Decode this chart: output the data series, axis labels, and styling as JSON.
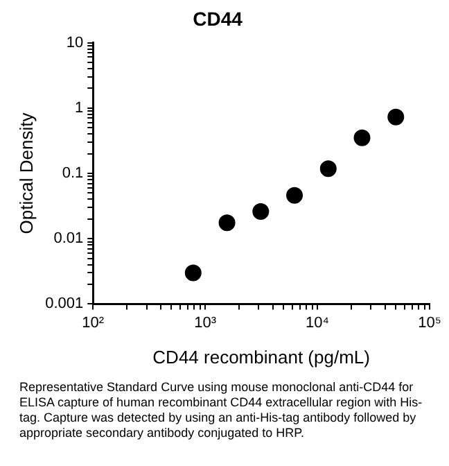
{
  "chart_data": {
    "type": "scatter",
    "title": "CD44",
    "xlabel": "CD44 recombinant (pg/mL)",
    "ylabel": "Optical Density",
    "annotations": [
      "Representative Standard Curve using mouse monoclonal anti-CD44 for ELISA capture of human recombinant CD44 extracellular region with His-tag. Capture was detected by using an anti-His-tag antibody followed by appropriate secondary antibody conjugated to HRP."
    ],
    "log": "xy",
    "marker": "circle",
    "grid": false,
    "legend": false,
    "x": [
      781,
      1563,
      3125,
      6250,
      12500,
      25000,
      50000
    ],
    "series": [
      {
        "color": "#000000",
        "values": [
          0.003,
          0.0175,
          0.026,
          0.046,
          0.118,
          0.35,
          0.73
        ]
      }
    ],
    "xlim": [
      100,
      100000
    ],
    "ylim": [
      0.001,
      10
    ],
    "xticks": [
      {
        "value": 100,
        "label": "10²"
      },
      {
        "value": 200,
        "label": null
      },
      {
        "value": 300,
        "label": null
      },
      {
        "value": 400,
        "label": null
      },
      {
        "value": 500,
        "label": null
      },
      {
        "value": 600,
        "label": null
      },
      {
        "value": 700,
        "label": null
      },
      {
        "value": 800,
        "label": null
      },
      {
        "value": 900,
        "label": null
      },
      {
        "value": 1000,
        "label": "10³"
      },
      {
        "value": 2000,
        "label": null
      },
      {
        "value": 3000,
        "label": null
      },
      {
        "value": 4000,
        "label": null
      },
      {
        "value": 5000,
        "label": null
      },
      {
        "value": 6000,
        "label": null
      },
      {
        "value": 7000,
        "label": null
      },
      {
        "value": 8000,
        "label": null
      },
      {
        "value": 9000,
        "label": null
      },
      {
        "value": 10000,
        "label": "10⁴"
      },
      {
        "value": 20000,
        "label": null
      },
      {
        "value": 30000,
        "label": null
      },
      {
        "value": 40000,
        "label": null
      },
      {
        "value": 50000,
        "label": null
      },
      {
        "value": 60000,
        "label": null
      },
      {
        "value": 70000,
        "label": null
      },
      {
        "value": 80000,
        "label": null
      },
      {
        "value": 90000,
        "label": null
      },
      {
        "value": 100000,
        "label": "10⁵"
      }
    ],
    "yticks": [
      0.001,
      {
        "value": 0.002,
        "label": null
      },
      {
        "value": 0.003,
        "label": null
      },
      {
        "value": 0.004,
        "label": null
      },
      {
        "value": 0.005,
        "label": null
      },
      {
        "value": 0.006,
        "label": null
      },
      {
        "value": 0.007,
        "label": null
      },
      {
        "value": 0.008,
        "label": null
      },
      {
        "value": 0.009,
        "label": null
      },
      0.01,
      {
        "value": 0.02,
        "label": null
      },
      {
        "value": 0.03,
        "label": null
      },
      {
        "value": 0.04,
        "label": null
      },
      {
        "value": 0.05,
        "label": null
      },
      {
        "value": 0.06,
        "label": null
      },
      {
        "value": 0.07,
        "label": null
      },
      {
        "value": 0.08,
        "label": null
      },
      {
        "value": 0.09,
        "label": null
      },
      0.1,
      {
        "value": 0.2,
        "label": null
      },
      {
        "value": 0.3,
        "label": null
      },
      {
        "value": 0.4,
        "label": null
      },
      {
        "value": 0.5,
        "label": null
      },
      {
        "value": 0.6,
        "label": null
      },
      {
        "value": 0.7,
        "label": null
      },
      {
        "value": 0.8,
        "label": null
      },
      {
        "value": 0.9,
        "label": null
      },
      1,
      {
        "value": 2,
        "label": null
      },
      {
        "value": 3,
        "label": null
      },
      {
        "value": 4,
        "label": null
      },
      {
        "value": 5,
        "label": null
      },
      {
        "value": 6,
        "label": null
      },
      {
        "value": 7,
        "label": null
      },
      {
        "value": 8,
        "label": null
      },
      {
        "value": 9,
        "label": null
      },
      10
    ]
  }
}
